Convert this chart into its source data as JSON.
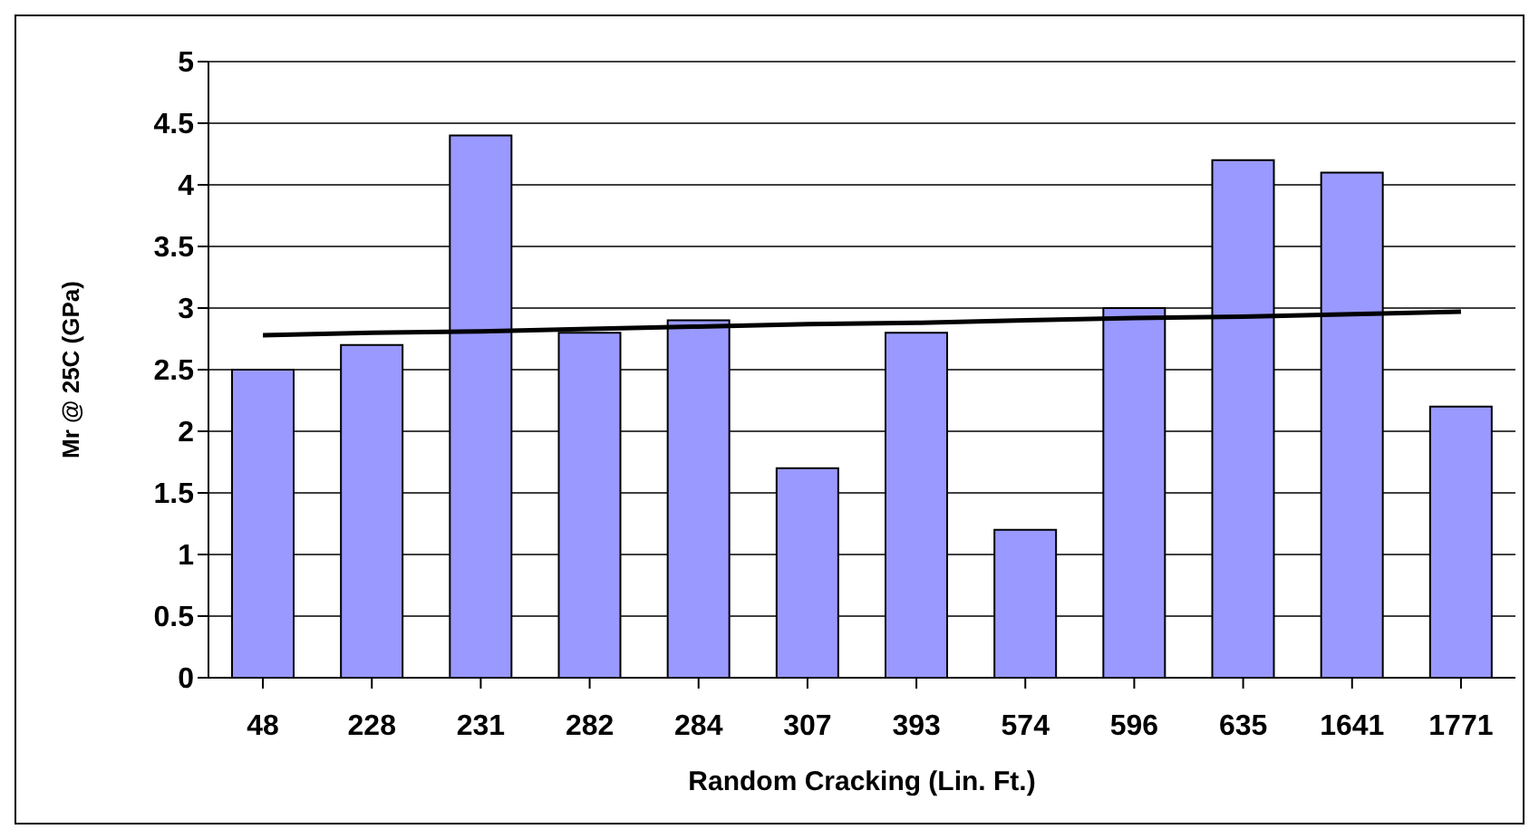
{
  "chart_data": {
    "type": "bar",
    "xlabel": "Random Cracking (Lin. Ft.)",
    "ylabel": "Mr @ 25C (GPa)",
    "categories": [
      "48",
      "228",
      "231",
      "282",
      "284",
      "307",
      "393",
      "574",
      "596",
      "635",
      "1641",
      "1771"
    ],
    "series": [
      {
        "color": "#9999ff",
        "values": [
          2.5,
          2.7,
          4.4,
          2.8,
          2.9,
          1.7,
          2.8,
          1.2,
          3.0,
          4.2,
          4.1,
          2.2
        ]
      },
      {
        "type": "line",
        "color": "#000000",
        "values": [
          2.78,
          2.8,
          2.81,
          2.83,
          2.85,
          2.87,
          2.88,
          2.9,
          2.92,
          2.93,
          2.95,
          2.97
        ]
      }
    ],
    "ylim": [
      0,
      5
    ],
    "yticks": [
      0,
      0.5,
      1,
      1.5,
      2,
      2.5,
      3,
      3.5,
      4,
      4.5,
      5
    ],
    "grid": "y"
  }
}
